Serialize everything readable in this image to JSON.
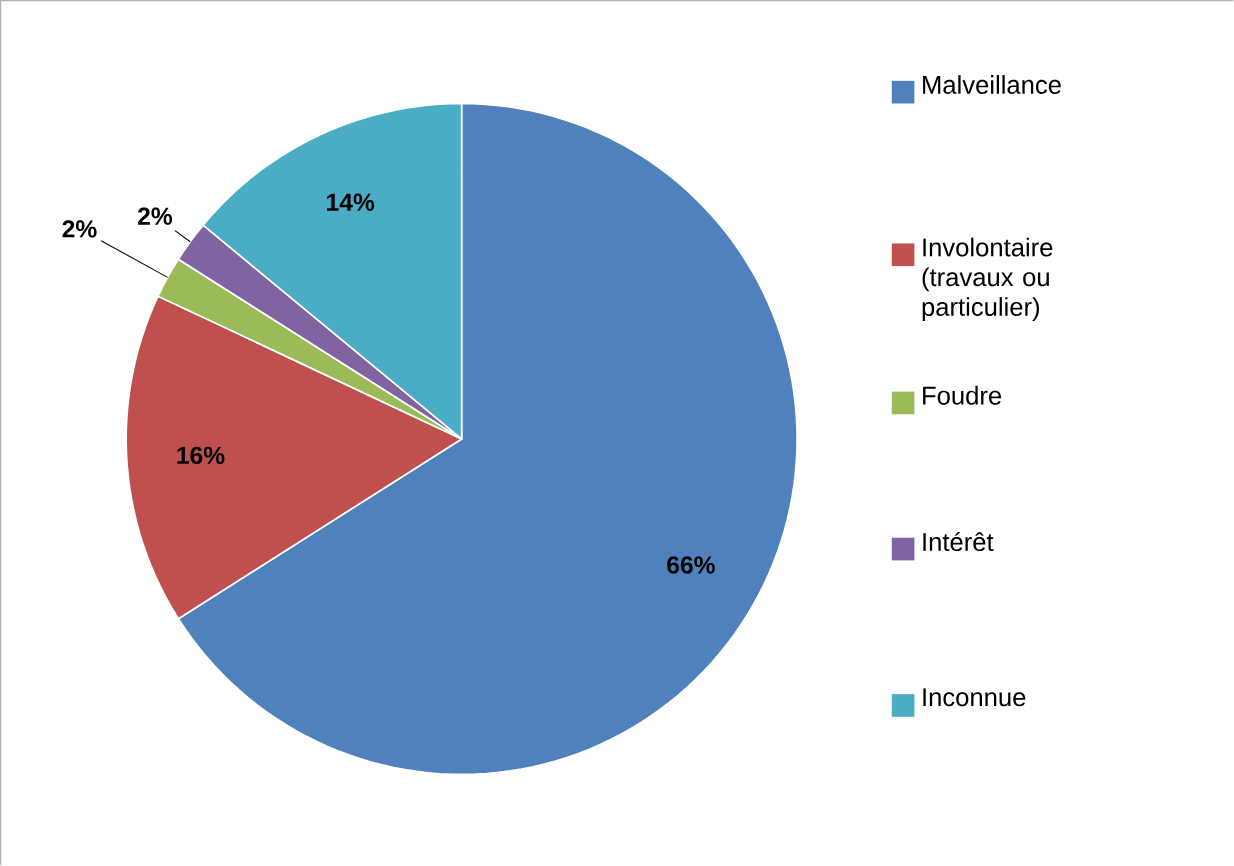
{
  "chart_data": {
    "type": "pie",
    "categories": [
      "Malveillance",
      "Involontaire (travaux ou particulier)",
      "Foudre",
      "Intérêt",
      "Inconnue"
    ],
    "values": [
      66,
      16,
      2,
      2,
      14
    ],
    "colors": [
      "#4f81bd",
      "#c0504d",
      "#9bbb59",
      "#8064a2",
      "#4bacc6"
    ],
    "value_labels": [
      "66%",
      "16%",
      "2%",
      "2%",
      "14%"
    ],
    "legend": "right"
  }
}
